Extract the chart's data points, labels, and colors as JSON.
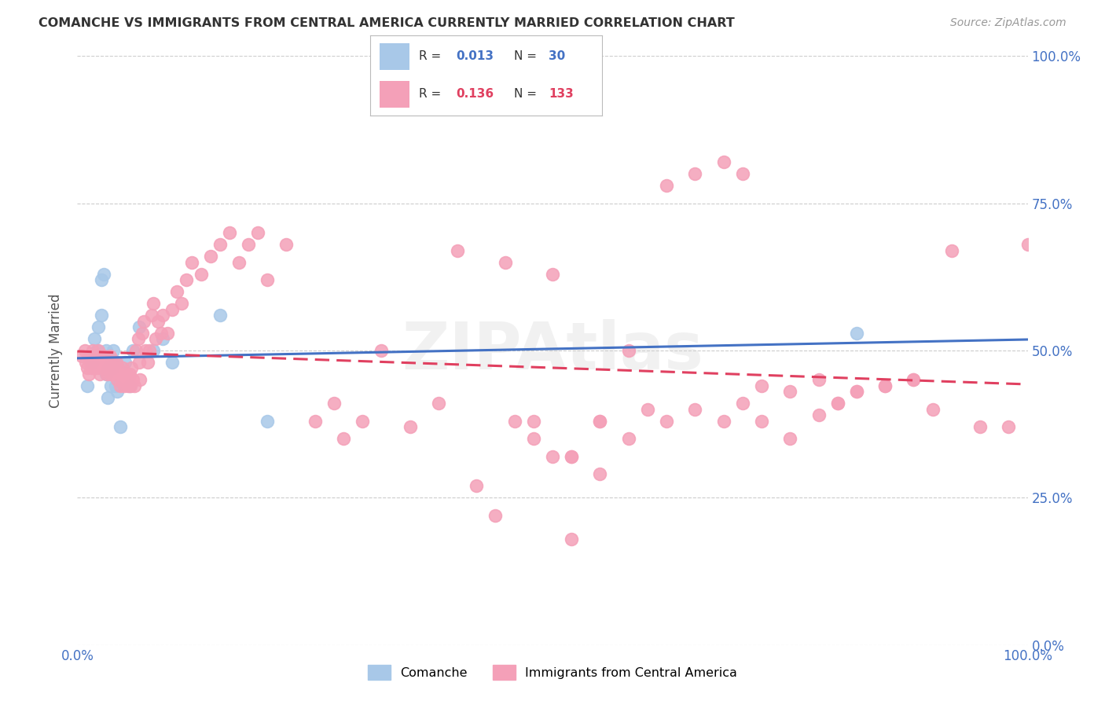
{
  "title": "COMANCHE VS IMMIGRANTS FROM CENTRAL AMERICA CURRENTLY MARRIED CORRELATION CHART",
  "source": "Source: ZipAtlas.com",
  "ylabel": "Currently Married",
  "xlim": [
    0,
    1
  ],
  "ylim": [
    0,
    1
  ],
  "ytick_labels": [
    "0.0%",
    "25.0%",
    "50.0%",
    "75.0%",
    "100.0%"
  ],
  "ytick_positions": [
    0.0,
    0.25,
    0.5,
    0.75,
    1.0
  ],
  "grid_color": "#cccccc",
  "background_color": "#ffffff",
  "watermark": "ZIPAtlas",
  "comanche_color": "#a8c8e8",
  "immigrant_color": "#f4a0b8",
  "line_comanche": "#4472c4",
  "line_immigrant": "#e04060",
  "legend_r1": "0.013",
  "legend_n1": "30",
  "legend_r2": "0.136",
  "legend_n2": "133",
  "comanche_x": [
    0.01,
    0.015,
    0.018,
    0.02,
    0.022,
    0.025,
    0.025,
    0.028,
    0.03,
    0.03,
    0.032,
    0.033,
    0.035,
    0.035,
    0.037,
    0.038,
    0.04,
    0.04,
    0.042,
    0.045,
    0.05,
    0.055,
    0.058,
    0.065,
    0.08,
    0.09,
    0.1,
    0.15,
    0.2,
    0.82
  ],
  "comanche_y": [
    0.44,
    0.48,
    0.52,
    0.5,
    0.54,
    0.56,
    0.62,
    0.63,
    0.46,
    0.5,
    0.42,
    0.47,
    0.48,
    0.44,
    0.47,
    0.5,
    0.44,
    0.48,
    0.43,
    0.37,
    0.48,
    0.44,
    0.5,
    0.54,
    0.5,
    0.52,
    0.48,
    0.56,
    0.38,
    0.53
  ],
  "immigrant_x": [
    0.005,
    0.008,
    0.009,
    0.01,
    0.012,
    0.013,
    0.014,
    0.015,
    0.016,
    0.017,
    0.018,
    0.019,
    0.02,
    0.021,
    0.022,
    0.023,
    0.024,
    0.025,
    0.026,
    0.027,
    0.028,
    0.029,
    0.03,
    0.031,
    0.032,
    0.033,
    0.034,
    0.035,
    0.036,
    0.037,
    0.038,
    0.039,
    0.04,
    0.041,
    0.042,
    0.043,
    0.044,
    0.045,
    0.046,
    0.047,
    0.048,
    0.049,
    0.05,
    0.052,
    0.053,
    0.054,
    0.055,
    0.056,
    0.057,
    0.058,
    0.06,
    0.062,
    0.064,
    0.065,
    0.066,
    0.068,
    0.07,
    0.072,
    0.074,
    0.076,
    0.078,
    0.08,
    0.082,
    0.085,
    0.088,
    0.09,
    0.095,
    0.1,
    0.105,
    0.11,
    0.115,
    0.12,
    0.13,
    0.14,
    0.15,
    0.16,
    0.17,
    0.18,
    0.19,
    0.2,
    0.22,
    0.25,
    0.27,
    0.28,
    0.3,
    0.32,
    0.35,
    0.38,
    0.4,
    0.45,
    0.5,
    0.52,
    0.55,
    0.58,
    0.6,
    0.62,
    0.65,
    0.68,
    0.7,
    0.72,
    0.75,
    0.78,
    0.8,
    0.82,
    0.85,
    0.88,
    0.9,
    0.92,
    0.95,
    0.98,
    1.0,
    0.42,
    0.44,
    0.46,
    0.48,
    0.5,
    0.52,
    0.55,
    0.48,
    0.52,
    0.55,
    0.58,
    0.62,
    0.65,
    0.68,
    0.7,
    0.72,
    0.75,
    0.78,
    0.8,
    0.82,
    0.85,
    0.88
  ],
  "immigrant_y": [
    0.49,
    0.5,
    0.48,
    0.47,
    0.46,
    0.49,
    0.48,
    0.47,
    0.5,
    0.48,
    0.47,
    0.48,
    0.49,
    0.47,
    0.5,
    0.48,
    0.46,
    0.47,
    0.48,
    0.47,
    0.49,
    0.48,
    0.47,
    0.46,
    0.48,
    0.47,
    0.49,
    0.46,
    0.47,
    0.46,
    0.48,
    0.47,
    0.46,
    0.48,
    0.45,
    0.47,
    0.46,
    0.44,
    0.46,
    0.45,
    0.47,
    0.44,
    0.45,
    0.46,
    0.44,
    0.45,
    0.46,
    0.44,
    0.47,
    0.45,
    0.44,
    0.5,
    0.52,
    0.48,
    0.45,
    0.53,
    0.55,
    0.5,
    0.48,
    0.5,
    0.56,
    0.58,
    0.52,
    0.55,
    0.53,
    0.56,
    0.53,
    0.57,
    0.6,
    0.58,
    0.62,
    0.65,
    0.63,
    0.66,
    0.68,
    0.7,
    0.65,
    0.68,
    0.7,
    0.62,
    0.68,
    0.38,
    0.41,
    0.35,
    0.38,
    0.5,
    0.37,
    0.41,
    0.67,
    0.65,
    0.63,
    0.32,
    0.29,
    0.5,
    0.4,
    0.78,
    0.8,
    0.82,
    0.8,
    0.38,
    0.35,
    0.39,
    0.41,
    0.43,
    0.44,
    0.45,
    0.4,
    0.67,
    0.37,
    0.37,
    0.68,
    0.27,
    0.22,
    0.38,
    0.35,
    0.32,
    0.18,
    0.38,
    0.38,
    0.32,
    0.38,
    0.35,
    0.38,
    0.4,
    0.38,
    0.41,
    0.44,
    0.43,
    0.45,
    0.41,
    0.43,
    0.44,
    0.45
  ]
}
